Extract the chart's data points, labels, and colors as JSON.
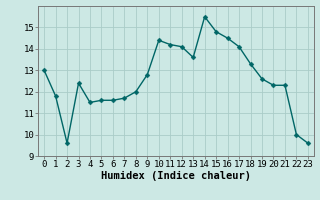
{
  "x": [
    0,
    1,
    2,
    3,
    4,
    5,
    6,
    7,
    8,
    9,
    10,
    11,
    12,
    13,
    14,
    15,
    16,
    17,
    18,
    19,
    20,
    21,
    22,
    23
  ],
  "y": [
    13.0,
    11.8,
    9.6,
    12.4,
    11.5,
    11.6,
    11.6,
    11.7,
    12.0,
    12.8,
    14.4,
    14.2,
    14.1,
    13.6,
    15.5,
    14.8,
    14.5,
    14.1,
    13.3,
    12.6,
    12.3,
    12.3,
    10.0,
    9.6
  ],
  "line_color": "#006666",
  "marker": "D",
  "marker_size": 2.5,
  "line_width": 1.0,
  "xlabel": "Humidex (Indice chaleur)",
  "xlim": [
    -0.5,
    23.5
  ],
  "ylim": [
    9,
    16
  ],
  "yticks": [
    9,
    10,
    11,
    12,
    13,
    14,
    15
  ],
  "bg_color": "#cce8e4",
  "grid_color": "#aaccc8",
  "tick_font_size": 6.5,
  "xlabel_font_size": 7.5
}
